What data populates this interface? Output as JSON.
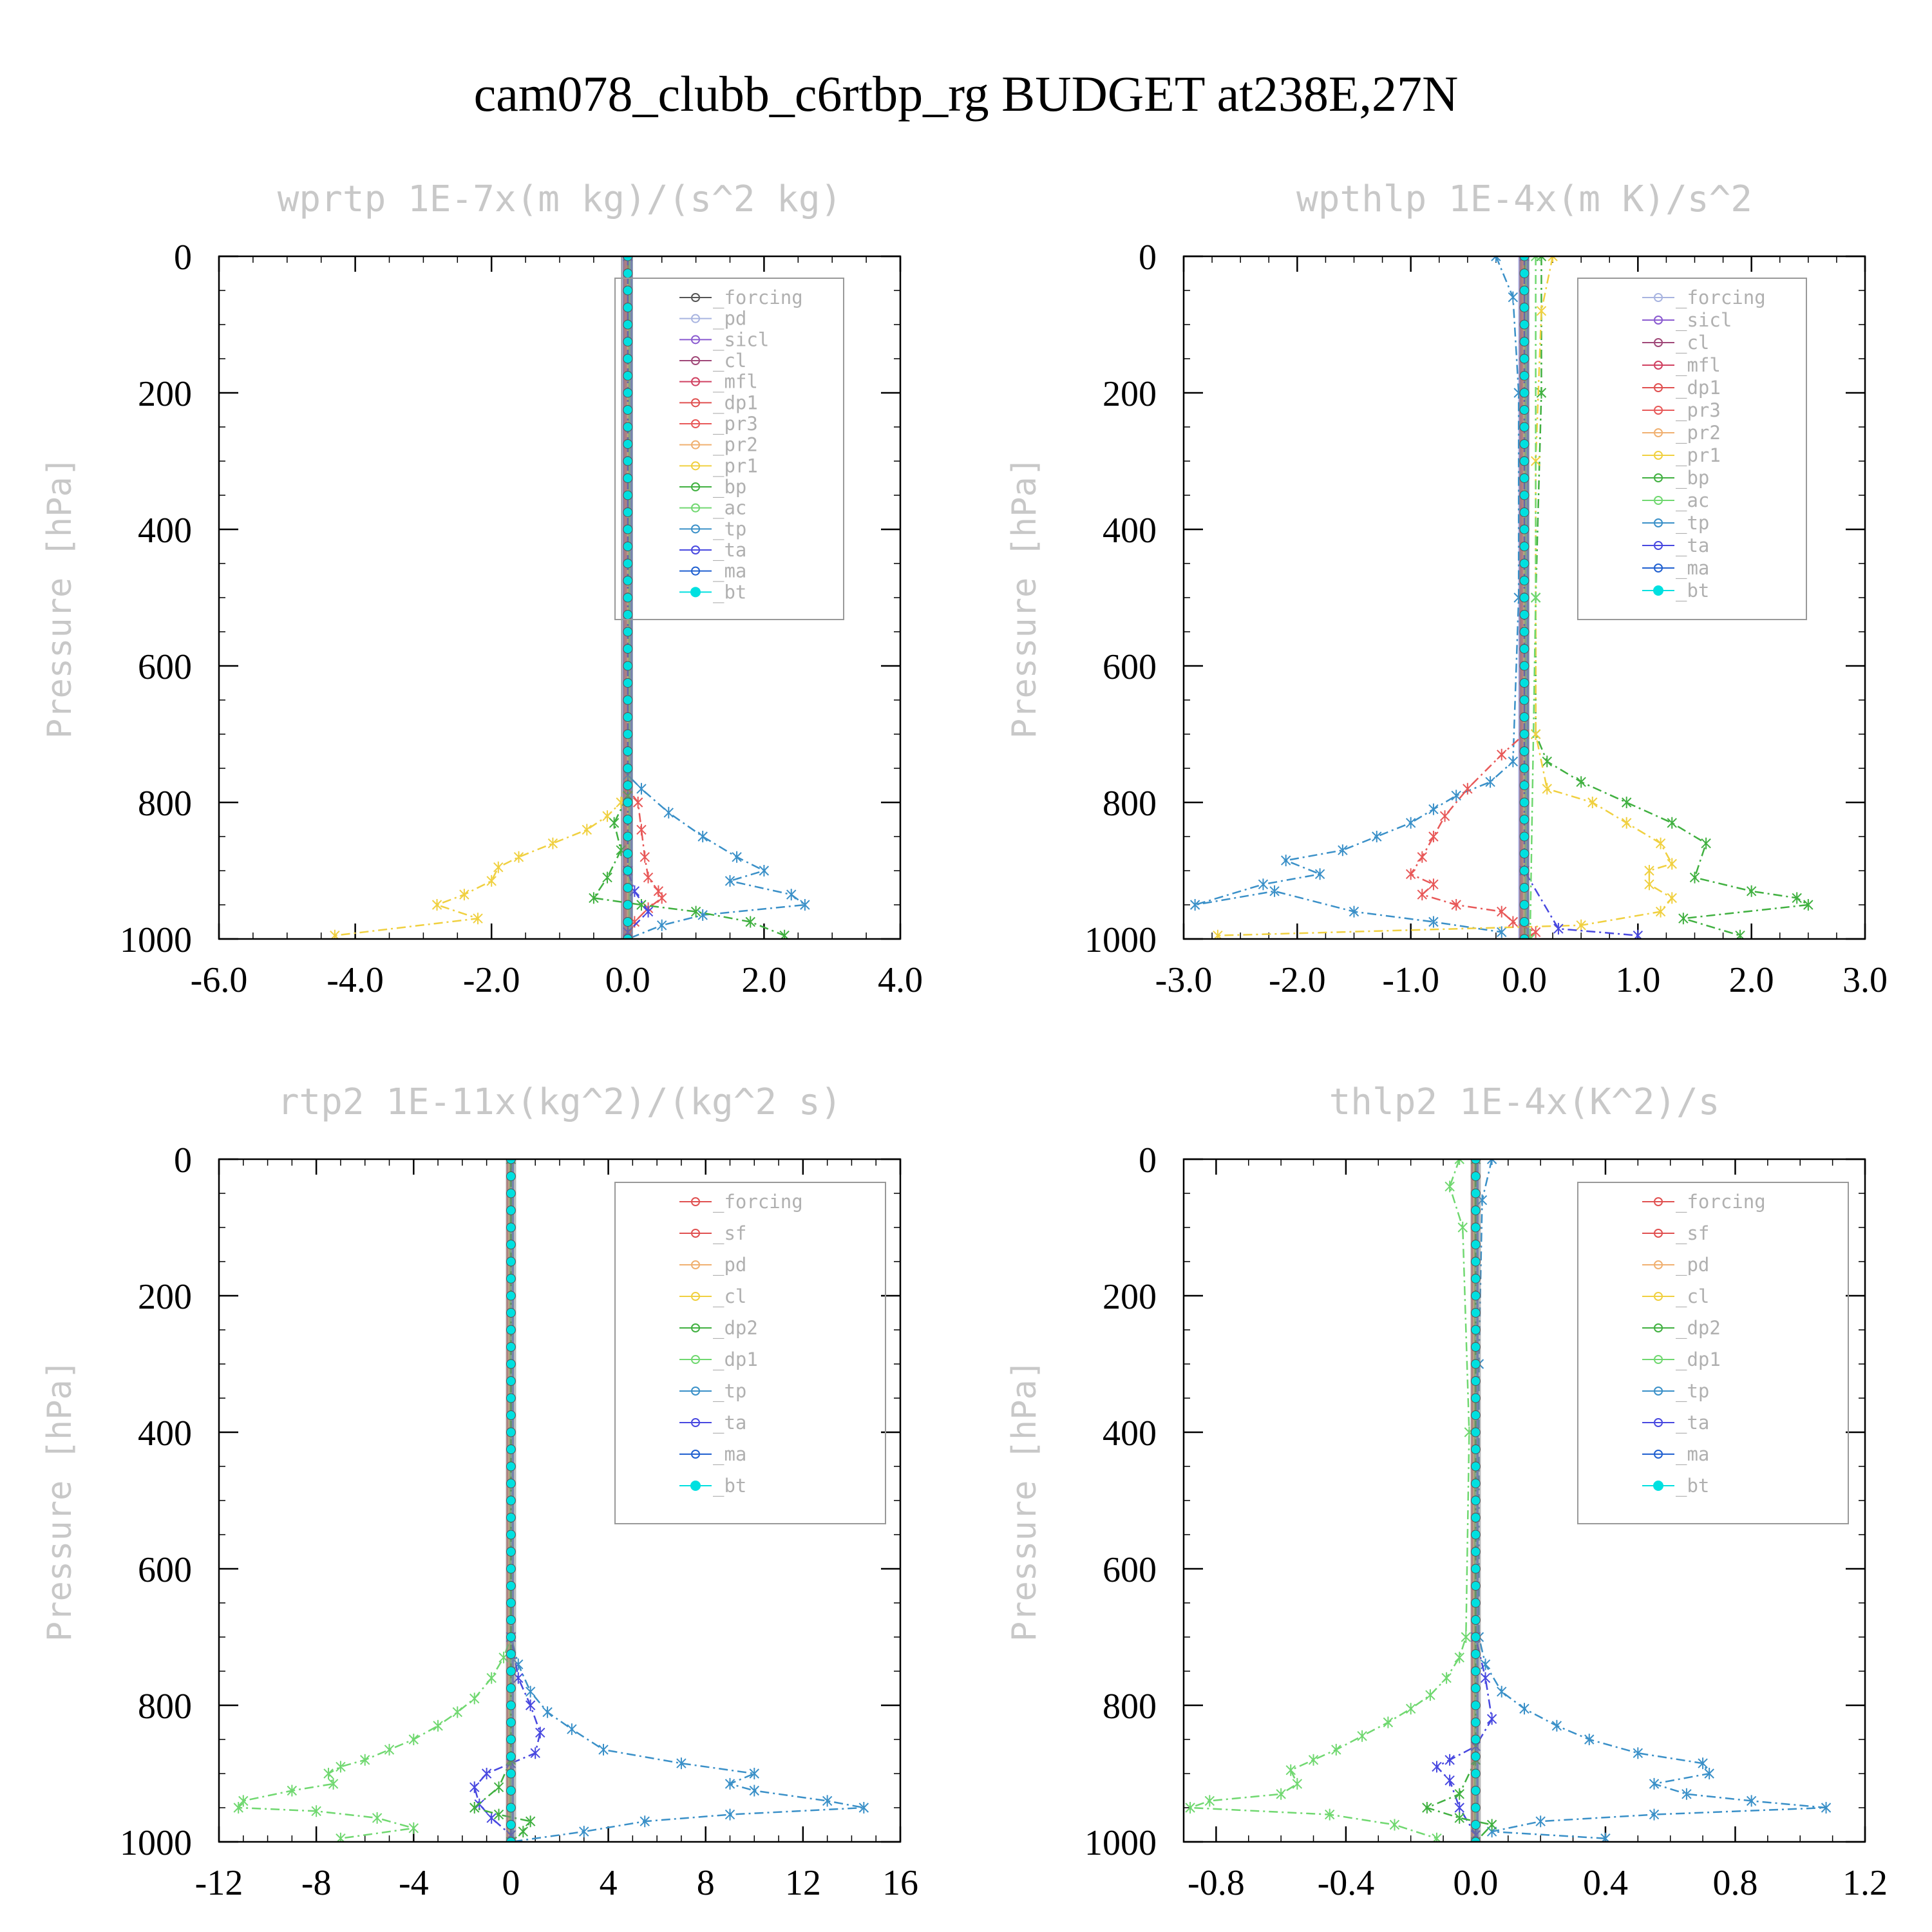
{
  "figure_title": "cam078_clubb_c6rtbp_rg  BUDGET at238E,27N",
  "colors": {
    "forcing": "#555555",
    "pd": "#a8b4e0",
    "sicl": "#8a5ad0",
    "cl": "#a04878",
    "mfl": "#d04060",
    "dp1": "#e05050",
    "pr3": "#e85858",
    "pr2": "#f0b070",
    "pr1": "#f0d040",
    "bp": "#40b040",
    "ac": "#70d870",
    "tp": "#3a90c8",
    "ta": "#4848e0",
    "ma": "#2060d0",
    "bt": "#00e0e0",
    "sf": "#e05050",
    "dp2": "#40b040"
  },
  "chart_data": [
    {
      "type": "line",
      "title": "wprtp  1E-7x(m kg)/(s^2 kg)",
      "ylabel": "Pressure [hPa]",
      "xlim": [
        -6,
        4
      ],
      "ylim": [
        1000,
        0
      ],
      "xticks": [
        "-6.0",
        "-4.0",
        "-2.0",
        "0.0",
        "2.0",
        "4.0"
      ],
      "xtick_values": [
        -6,
        -4,
        -2,
        0,
        2,
        4
      ],
      "yticks": [
        "0",
        "200",
        "400",
        "600",
        "800",
        "1000"
      ],
      "ytick_values": [
        0,
        200,
        400,
        600,
        800,
        1000
      ],
      "legend": [
        "_forcing",
        "_pd",
        "_sicl",
        "_cl",
        "_mfl",
        "_dp1",
        "_pr3",
        "_pr2",
        "_pr1",
        "_bp",
        "_ac",
        "_tp",
        "_ta",
        "_ma",
        "_bt"
      ],
      "legend_keys": [
        "forcing",
        "pd",
        "sicl",
        "cl",
        "mfl",
        "dp1",
        "pr3",
        "pr2",
        "pr1",
        "bp",
        "ac",
        "tp",
        "ta",
        "ma",
        "bt"
      ],
      "series": [
        {
          "key": "pr1",
          "x": [
            0,
            0,
            -0.1,
            -0.3,
            -0.6,
            -1.1,
            -1.6,
            -1.9,
            -2.0,
            -2.4,
            -2.8,
            -2.2,
            -4.3
          ],
          "y": [
            0,
            760,
            800,
            820,
            840,
            860,
            880,
            895,
            915,
            935,
            950,
            970,
            995
          ]
        },
        {
          "key": "tp",
          "x": [
            0,
            0,
            0.2,
            0.6,
            1.1,
            1.6,
            2.0,
            1.5,
            2.4,
            2.6,
            1.1,
            0.5,
            0
          ],
          "y": [
            0,
            760,
            780,
            815,
            850,
            880,
            900,
            915,
            935,
            950,
            965,
            980,
            1000
          ]
        },
        {
          "key": "pr3",
          "x": [
            0,
            0,
            0.15,
            0.2,
            0.25,
            0.3,
            0.45,
            0.5,
            0.3,
            0.1,
            0
          ],
          "y": [
            0,
            780,
            800,
            840,
            880,
            910,
            930,
            940,
            955,
            975,
            1000
          ]
        },
        {
          "key": "bp",
          "x": [
            0,
            0,
            -0.2,
            -0.1,
            -0.3,
            -0.5,
            0.2,
            1.0,
            1.8,
            2.3
          ],
          "y": [
            0,
            790,
            830,
            870,
            910,
            940,
            950,
            960,
            975,
            995
          ]
        },
        {
          "key": "ta",
          "x": [
            0,
            0,
            0.1,
            0.3,
            0
          ],
          "y": [
            0,
            900,
            930,
            960,
            990
          ]
        },
        {
          "key": "bt",
          "x": [
            0,
            0
          ],
          "y": [
            0,
            1000
          ]
        }
      ]
    },
    {
      "type": "line",
      "title": "wpthlp  1E-4x(m K)/s^2",
      "ylabel": "Pressure [hPa]",
      "xlim": [
        -3,
        3
      ],
      "ylim": [
        1000,
        0
      ],
      "xticks": [
        "-3.0",
        "-2.0",
        "-1.0",
        "0.0",
        "1.0",
        "2.0",
        "3.0"
      ],
      "xtick_values": [
        -3,
        -2,
        -1,
        0,
        1,
        2,
        3
      ],
      "yticks": [
        "0",
        "200",
        "400",
        "600",
        "800",
        "1000"
      ],
      "ytick_values": [
        0,
        200,
        400,
        600,
        800,
        1000
      ],
      "legend": [
        "_forcing",
        "_sicl",
        "_cl",
        "_mfl",
        "_dp1",
        "_pr3",
        "_pr2",
        "_pr1",
        "_bp",
        "_ac",
        "_tp",
        "_ta",
        "_ma",
        "_bt"
      ],
      "legend_keys": [
        "pd",
        "sicl",
        "cl",
        "mfl",
        "dp1",
        "pr3",
        "pr2",
        "pr1",
        "bp",
        "ac",
        "tp",
        "ta",
        "ma",
        "bt"
      ],
      "series": [
        {
          "key": "tp",
          "x": [
            -0.25,
            -0.1,
            -0.05,
            -0.05,
            -0.1,
            -0.3,
            -0.6,
            -0.8,
            -1.0,
            -1.3,
            -1.6,
            -2.1,
            -1.8,
            -2.3,
            -2.9,
            -2.2,
            -1.5,
            -0.8,
            -0.2
          ],
          "y": [
            0,
            60,
            200,
            500,
            740,
            770,
            790,
            810,
            830,
            850,
            870,
            885,
            905,
            920,
            950,
            930,
            960,
            975,
            990
          ]
        },
        {
          "key": "bp",
          "x": [
            0.15,
            0.15,
            0.1,
            0.1,
            0.2,
            0.5,
            0.9,
            1.3,
            1.6,
            1.5,
            2.0,
            2.4,
            2.5,
            1.4,
            1.9
          ],
          "y": [
            0,
            200,
            500,
            700,
            740,
            770,
            800,
            830,
            860,
            910,
            930,
            940,
            950,
            970,
            995
          ]
        },
        {
          "key": "pr1",
          "x": [
            0.25,
            0.15,
            0.1,
            0.1,
            0.2,
            0.6,
            0.9,
            1.2,
            1.3,
            1.1,
            1.1,
            1.3,
            1.2,
            0.5,
            -2.7
          ],
          "y": [
            0,
            80,
            300,
            700,
            780,
            800,
            830,
            860,
            890,
            900,
            920,
            940,
            960,
            980,
            995
          ]
        },
        {
          "key": "pr3",
          "x": [
            0,
            0,
            -0.2,
            -0.5,
            -0.7,
            -0.8,
            -0.9,
            -1.0,
            -0.8,
            -0.9,
            -0.6,
            -0.2,
            -0.1,
            0.1,
            0
          ],
          "y": [
            0,
            700,
            730,
            780,
            820,
            850,
            880,
            905,
            920,
            935,
            950,
            960,
            975,
            990,
            1000
          ]
        },
        {
          "key": "ac",
          "x": [
            0.1,
            0.1,
            0.05
          ],
          "y": [
            0,
            500,
            1000
          ]
        },
        {
          "key": "ta",
          "x": [
            0,
            0,
            0.3,
            1.0
          ],
          "y": [
            0,
            900,
            985,
            995
          ]
        },
        {
          "key": "bt",
          "x": [
            0,
            0
          ],
          "y": [
            0,
            1000
          ]
        }
      ]
    },
    {
      "type": "line",
      "title": "rtp2  1E-11x(kg^2)/(kg^2 s)",
      "ylabel": "Pressure [hPa]",
      "xlim": [
        -12,
        16
      ],
      "ylim": [
        1000,
        0
      ],
      "xticks": [
        "-12",
        "-8",
        "-4",
        "0",
        "4",
        "8",
        "12",
        "16"
      ],
      "xtick_values": [
        -12,
        -8,
        -4,
        0,
        4,
        8,
        12,
        16
      ],
      "yticks": [
        "0",
        "200",
        "400",
        "600",
        "800",
        "1000"
      ],
      "ytick_values": [
        0,
        200,
        400,
        600,
        800,
        1000
      ],
      "legend": [
        "_forcing",
        "_sf",
        "_pd",
        "_cl",
        "_dp2",
        "_dp1",
        "_tp",
        "_ta",
        "_ma",
        "_bt"
      ],
      "legend_keys": [
        "dp1",
        "sf",
        "pr2",
        "pr1",
        "bp",
        "ac",
        "tp",
        "ta",
        "ma",
        "bt"
      ],
      "series": [
        {
          "key": "ac",
          "x": [
            0,
            0,
            -0.3,
            -0.8,
            -1.5,
            -2.2,
            -3.0,
            -4.0,
            -5.0,
            -6.0,
            -7.0,
            -7.5,
            -7.3,
            -9.0,
            -11.0,
            -11.2,
            -8.0,
            -5.5,
            -4.0,
            -7.0
          ],
          "y": [
            0,
            700,
            730,
            760,
            790,
            810,
            830,
            850,
            865,
            880,
            890,
            900,
            915,
            925,
            940,
            950,
            955,
            965,
            980,
            995
          ]
        },
        {
          "key": "tp",
          "x": [
            0,
            0,
            0.3,
            0.8,
            1.5,
            2.5,
            3.8,
            7.0,
            10.0,
            9.0,
            10.0,
            13.0,
            14.5,
            9.0,
            5.5,
            3.0,
            0
          ],
          "y": [
            0,
            700,
            740,
            780,
            810,
            835,
            865,
            885,
            900,
            915,
            925,
            940,
            950,
            960,
            970,
            985,
            1000
          ]
        },
        {
          "key": "ta",
          "x": [
            0,
            0,
            0.3,
            0.8,
            1.2,
            1.0,
            0,
            -1.0,
            -1.5,
            -1.3,
            -0.8,
            0
          ],
          "y": [
            0,
            700,
            760,
            800,
            840,
            870,
            885,
            900,
            920,
            945,
            965,
            990
          ]
        },
        {
          "key": "bp",
          "x": [
            0,
            0,
            -0.5,
            -1.5,
            -0.5,
            0.8,
            0.5,
            0
          ],
          "y": [
            0,
            880,
            920,
            950,
            960,
            970,
            985,
            1000
          ]
        },
        {
          "key": "bt",
          "x": [
            0,
            0
          ],
          "y": [
            0,
            1000
          ]
        }
      ]
    },
    {
      "type": "line",
      "title": "thlp2  1E-4x(K^2)/s",
      "ylabel": "Pressure [hPa]",
      "xlim": [
        -0.9,
        1.2
      ],
      "ylim": [
        1000,
        0
      ],
      "xticks": [
        "-0.8",
        "-0.4",
        "0.0",
        "0.4",
        "0.8",
        "1.2"
      ],
      "xtick_values": [
        -0.8,
        -0.4,
        0,
        0.4,
        0.8,
        1.2
      ],
      "yticks": [
        "0",
        "200",
        "400",
        "600",
        "800",
        "1000"
      ],
      "ytick_values": [
        0,
        200,
        400,
        600,
        800,
        1000
      ],
      "legend": [
        "_forcing",
        "_sf",
        "_pd",
        "_cl",
        "_dp2",
        "_dp1",
        "_tp",
        "_ta",
        "_ma",
        "_bt"
      ],
      "legend_keys": [
        "dp1",
        "sf",
        "pr2",
        "pr1",
        "bp",
        "ac",
        "tp",
        "ta",
        "ma",
        "bt"
      ],
      "series": [
        {
          "key": "ac",
          "x": [
            -0.05,
            -0.08,
            -0.04,
            -0.02,
            -0.03,
            -0.05,
            -0.09,
            -0.14,
            -0.2,
            -0.27,
            -0.35,
            -0.43,
            -0.5,
            -0.57,
            -0.55,
            -0.6,
            -0.82,
            -0.88,
            -0.45,
            -0.25,
            -0.12
          ],
          "y": [
            0,
            40,
            100,
            400,
            700,
            730,
            760,
            785,
            805,
            825,
            845,
            865,
            880,
            895,
            915,
            930,
            940,
            950,
            960,
            975,
            995
          ]
        },
        {
          "key": "tp",
          "x": [
            0.05,
            0.02,
            0.01,
            0.01,
            0.03,
            0.08,
            0.15,
            0.25,
            0.35,
            0.5,
            0.7,
            0.72,
            0.55,
            0.65,
            0.85,
            1.08,
            0.55,
            0.2,
            0.05,
            0.4
          ],
          "y": [
            0,
            60,
            300,
            700,
            740,
            780,
            805,
            830,
            850,
            870,
            885,
            900,
            915,
            930,
            940,
            950,
            960,
            970,
            985,
            995
          ]
        },
        {
          "key": "ta",
          "x": [
            0,
            0,
            0.03,
            0.05,
            0,
            -0.08,
            -0.12,
            -0.08,
            -0.05,
            0
          ],
          "y": [
            0,
            700,
            760,
            820,
            860,
            880,
            890,
            910,
            950,
            990
          ]
        },
        {
          "key": "bp",
          "x": [
            0,
            0,
            -0.05,
            -0.15,
            -0.05,
            0.05,
            0
          ],
          "y": [
            0,
            880,
            930,
            950,
            965,
            975,
            1000
          ]
        },
        {
          "key": "bt",
          "x": [
            0,
            0
          ],
          "y": [
            0,
            1000
          ]
        }
      ]
    }
  ]
}
